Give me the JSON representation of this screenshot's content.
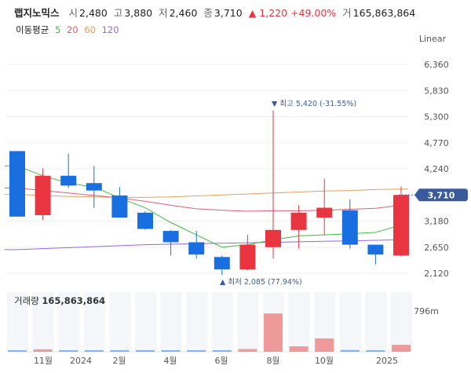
{
  "header": {
    "name": "랩지노믹스",
    "open_label": "시",
    "open": "2,480",
    "high_label": "고",
    "high": "3,880",
    "low_label": "저",
    "low": "2,460",
    "close_label": "종",
    "close": "3,710",
    "change": "▲ 1,220 +49.00%",
    "volume_label": "거",
    "volume": "165,863,864"
  },
  "ma_legend": {
    "label": "이동평균",
    "ma5": "5",
    "ma20": "20",
    "ma60": "60",
    "ma120": "120",
    "colors": {
      "ma5": "#3cbf3c",
      "ma20": "#e06070",
      "ma60": "#e0a060",
      "ma120": "#9966dd"
    }
  },
  "scale_mode": "Linear",
  "colors": {
    "up": "#e8353f",
    "down": "#1a6fe0",
    "up_volume": "#ef9a9a",
    "down_volume": "#7fb6f0",
    "price_tag": "#3a5a9c"
  },
  "chart_data": {
    "type": "candlestick",
    "ylim": [
      1950,
      6600
    ],
    "price_ticks": [
      "6,360",
      "5,830",
      "5,300",
      "4,770",
      "4,240",
      "3,710",
      "3,180",
      "2,650",
      "2,120"
    ],
    "x_tick_labels": [
      "11월",
      "2024",
      "2월",
      "4월",
      "6월",
      "8월",
      "10월",
      "2025"
    ],
    "candles": [
      {
        "open": 4600,
        "high": 4600,
        "low": 3270,
        "close": 3270
      },
      {
        "open": 3300,
        "high": 4250,
        "low": 3200,
        "close": 4100
      },
      {
        "open": 4100,
        "high": 4550,
        "low": 3850,
        "close": 3900
      },
      {
        "open": 3950,
        "high": 4300,
        "low": 3450,
        "close": 3800
      },
      {
        "open": 3700,
        "high": 3870,
        "low": 3250,
        "close": 3250
      },
      {
        "open": 3350,
        "high": 3380,
        "low": 3000,
        "close": 3020
      },
      {
        "open": 2980,
        "high": 3000,
        "low": 2480,
        "close": 2750
      },
      {
        "open": 2750,
        "high": 2980,
        "low": 2420,
        "close": 2500
      },
      {
        "open": 2450,
        "high": 2480,
        "low": 2085,
        "close": 2200
      },
      {
        "open": 2200,
        "high": 2900,
        "low": 2180,
        "close": 2700
      },
      {
        "open": 2650,
        "high": 5420,
        "low": 2420,
        "close": 3000
      },
      {
        "open": 3000,
        "high": 3500,
        "low": 2620,
        "close": 3350
      },
      {
        "open": 3250,
        "high": 4040,
        "low": 2900,
        "close": 3450
      },
      {
        "open": 3400,
        "high": 3620,
        "low": 2620,
        "close": 2700
      },
      {
        "open": 2700,
        "high": 2700,
        "low": 2300,
        "close": 2500
      },
      {
        "open": 2480,
        "high": 3880,
        "low": 2460,
        "close": 3710
      }
    ],
    "volumes": [
      2,
      4,
      2.5,
      2,
      0.5,
      0.3,
      0.5,
      0.8,
      0.6,
      4.5,
      63,
      9,
      22,
      3,
      1.5,
      11.5
    ],
    "volume_tick": "796m",
    "volume_title": "거래량",
    "volume_value": "165,863,864",
    "ma5": [
      4300,
      4100,
      3950,
      3870,
      3650,
      3450,
      3150,
      2900,
      2650,
      2700,
      2800,
      2880,
      2900,
      2920,
      2950,
      3100
    ],
    "ma20": [
      3850,
      3800,
      3750,
      3700,
      3650,
      3580,
      3500,
      3430,
      3400,
      3380,
      3390,
      3390,
      3400,
      3420,
      3440,
      3500
    ],
    "ma60": [
      3720,
      3700,
      3680,
      3670,
      3660,
      3660,
      3670,
      3690,
      3710,
      3730,
      3750,
      3770,
      3790,
      3800,
      3820,
      3830
    ],
    "ma120": [
      2600,
      2620,
      2640,
      2660,
      2680,
      2700,
      2710,
      2720,
      2730,
      2740,
      2750,
      2760,
      2770,
      2780,
      2790,
      2800
    ],
    "annotations": {
      "high": "▼ 최고 5,420 (-31.55%)",
      "low": "▲ 최저 2,085 (77.94%)",
      "last_price": "3,710"
    }
  }
}
